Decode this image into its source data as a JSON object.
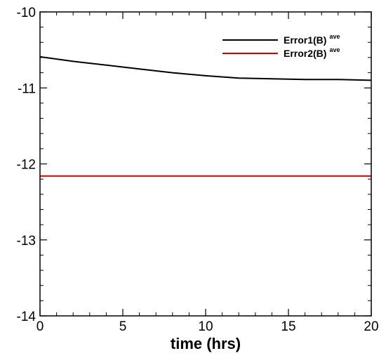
{
  "chart_data": {
    "type": "line",
    "title": "",
    "xlabel": "time (hrs)",
    "ylabel": "",
    "xlim": [
      0,
      20
    ],
    "ylim": [
      -14,
      -10
    ],
    "xticks": [
      0,
      5,
      10,
      15,
      20
    ],
    "xtick_labels": [
      "0",
      "5",
      "10",
      "15",
      "20"
    ],
    "yticks": [
      -10,
      -11,
      -12,
      -13,
      -14
    ],
    "ytick_labels": [
      "-10",
      "-11",
      "-12",
      "-13",
      "-14"
    ],
    "grid": false,
    "legend_position": "top-right",
    "series": [
      {
        "name": "Error1(B)",
        "name_sup": "ave",
        "color": "#000000",
        "x": [
          0,
          2,
          4,
          6,
          8,
          10,
          12,
          14,
          16,
          18,
          20
        ],
        "y": [
          -10.59,
          -10.65,
          -10.7,
          -10.75,
          -10.8,
          -10.84,
          -10.87,
          -10.88,
          -10.89,
          -10.89,
          -10.9
        ]
      },
      {
        "name": "Error2(B)",
        "name_sup": "ave",
        "color": "#cc0000",
        "x": [
          0,
          20
        ],
        "y": [
          -12.16,
          -12.16
        ]
      }
    ]
  }
}
